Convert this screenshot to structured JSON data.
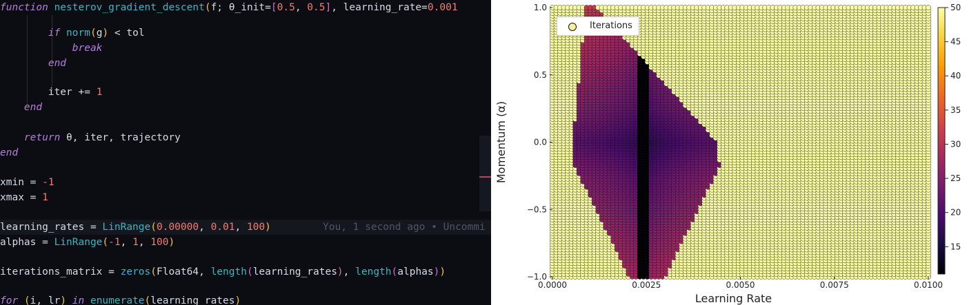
{
  "editor": {
    "blame_text": "You, 1 second ago • Uncommi",
    "lines": [
      {
        "top": 0,
        "tokens": [
          {
            "text": "function ",
            "cls": "kw"
          },
          {
            "text": "nesterov_gradient_descent",
            "cls": "fn"
          },
          {
            "text": "(",
            "cls": "br"
          },
          {
            "text": "f; θ_init=",
            "cls": "plain"
          },
          {
            "text": "[",
            "cls": "br2"
          },
          {
            "text": "0.5",
            "cls": "num"
          },
          {
            "text": ", ",
            "cls": "plain"
          },
          {
            "text": "0.5",
            "cls": "num"
          },
          {
            "text": "]",
            "cls": "br2"
          },
          {
            "text": ", learning_rate=",
            "cls": "plain"
          },
          {
            "text": "0.001",
            "cls": "num"
          }
        ]
      },
      {
        "top": 37,
        "indent": "        ",
        "tokens": [
          {
            "text": "if ",
            "cls": "kw"
          },
          {
            "text": "norm",
            "cls": "fn"
          },
          {
            "text": "(",
            "cls": "br"
          },
          {
            "text": "g",
            "cls": "plain"
          },
          {
            "text": ")",
            "cls": "br"
          },
          {
            "text": " < tol",
            "cls": "plain"
          }
        ]
      },
      {
        "top": 59,
        "indent": "            ",
        "tokens": [
          {
            "text": "break",
            "cls": "kw"
          }
        ]
      },
      {
        "top": 81,
        "indent": "        ",
        "tokens": [
          {
            "text": "end",
            "cls": "kw"
          }
        ]
      },
      {
        "top": 123,
        "indent": "        ",
        "tokens": [
          {
            "text": "iter ",
            "cls": "plain"
          },
          {
            "text": "+=",
            "cls": "op"
          },
          {
            "text": " ",
            "cls": "plain"
          },
          {
            "text": "1",
            "cls": "num"
          }
        ]
      },
      {
        "top": 145,
        "indent": "    ",
        "tokens": [
          {
            "text": "end",
            "cls": "kw"
          }
        ]
      },
      {
        "top": 189,
        "indent": "    ",
        "tokens": [
          {
            "text": "return ",
            "cls": "kw"
          },
          {
            "text": "θ, iter, trajectory",
            "cls": "plain"
          }
        ]
      },
      {
        "top": 211,
        "tokens": [
          {
            "text": "end",
            "cls": "kw"
          }
        ]
      },
      {
        "top": 254,
        "tokens": [
          {
            "text": "xmin = ",
            "cls": "plain"
          },
          {
            "text": "-1",
            "cls": "num"
          }
        ]
      },
      {
        "top": 276,
        "tokens": [
          {
            "text": "xmax = ",
            "cls": "plain"
          },
          {
            "text": "1",
            "cls": "num"
          }
        ]
      },
      {
        "top": 319,
        "current": true,
        "tokens": [
          {
            "text": "learning_rates = ",
            "cls": "plain"
          },
          {
            "text": "LinRange",
            "cls": "fn"
          },
          {
            "text": "(",
            "cls": "br"
          },
          {
            "text": "0.00000",
            "cls": "num"
          },
          {
            "text": ", ",
            "cls": "plain"
          },
          {
            "text": "0.01",
            "cls": "num"
          },
          {
            "text": ", ",
            "cls": "plain"
          },
          {
            "text": "100",
            "cls": "num"
          },
          {
            "text": ")",
            "cls": "br"
          }
        ]
      },
      {
        "top": 341,
        "tokens": [
          {
            "text": "alphas = ",
            "cls": "plain"
          },
          {
            "text": "LinRange",
            "cls": "fn"
          },
          {
            "text": "(",
            "cls": "br"
          },
          {
            "text": "-1",
            "cls": "num"
          },
          {
            "text": ", ",
            "cls": "plain"
          },
          {
            "text": "1",
            "cls": "num"
          },
          {
            "text": ", ",
            "cls": "plain"
          },
          {
            "text": "100",
            "cls": "num"
          },
          {
            "text": ")",
            "cls": "br"
          }
        ]
      },
      {
        "top": 384,
        "tokens": [
          {
            "text": "iterations_matrix = ",
            "cls": "plain"
          },
          {
            "text": "zeros",
            "cls": "fn"
          },
          {
            "text": "(",
            "cls": "br"
          },
          {
            "text": "Float64",
            "cls": "plain"
          },
          {
            "text": ", ",
            "cls": "plain"
          },
          {
            "text": "length",
            "cls": "fn"
          },
          {
            "text": "(",
            "cls": "br2"
          },
          {
            "text": "learning_rates",
            "cls": "plain"
          },
          {
            "text": ")",
            "cls": "br2"
          },
          {
            "text": ", ",
            "cls": "plain"
          },
          {
            "text": "length",
            "cls": "fn"
          },
          {
            "text": "(",
            "cls": "br2"
          },
          {
            "text": "alphas",
            "cls": "plain"
          },
          {
            "text": ")",
            "cls": "br2"
          },
          {
            "text": ")",
            "cls": "br"
          }
        ]
      },
      {
        "top": 426,
        "tokens": [
          {
            "text": "for ",
            "cls": "kw"
          },
          {
            "text": "(",
            "cls": "br"
          },
          {
            "text": "i, lr",
            "cls": "plain"
          },
          {
            "text": ")",
            "cls": "br"
          },
          {
            "text": " in ",
            "cls": "kw"
          },
          {
            "text": "enumerate",
            "cls": "fn"
          },
          {
            "text": "(",
            "cls": "br"
          },
          {
            "text": "learning_rates",
            "cls": "plain"
          },
          {
            "text": ")",
            "cls": "br"
          }
        ]
      }
    ]
  },
  "chart_data": {
    "type": "scatter",
    "xlabel": "Learning Rate",
    "ylabel": "Momentum (α)",
    "legend": "Iterations",
    "legend_position": "top-left",
    "xlim": [
      0.0,
      0.01
    ],
    "ylim": [
      -1.0,
      1.0
    ],
    "x_ticks": [
      0.0,
      0.0025,
      0.005,
      0.0075,
      0.01
    ],
    "x_tick_labels": [
      "0.0000",
      "0.0025",
      "0.0050",
      "0.0075",
      "0.0100"
    ],
    "y_ticks": [
      -1.0,
      -0.5,
      0.0,
      0.5,
      1.0
    ],
    "y_tick_labels": [
      "−1.0",
      "−0.5",
      "0.0",
      "0.5",
      "1.0"
    ],
    "colorbar_ticks": [
      15,
      20,
      25,
      30,
      35,
      40,
      45,
      50
    ],
    "colorbar_tick_labels": [
      "15",
      "20",
      "25",
      "30",
      "35",
      "40",
      "45",
      "50"
    ],
    "grid": {
      "x_points": 100,
      "y_points": 100
    },
    "color_range": [
      11,
      50
    ],
    "colormap": [
      "#000004",
      "#1b0c41",
      "#4a0c6b",
      "#781c6d",
      "#a52c60",
      "#cf4446",
      "#ed6925",
      "#fb9b06",
      "#f7d13d",
      "#fcffa4"
    ]
  }
}
